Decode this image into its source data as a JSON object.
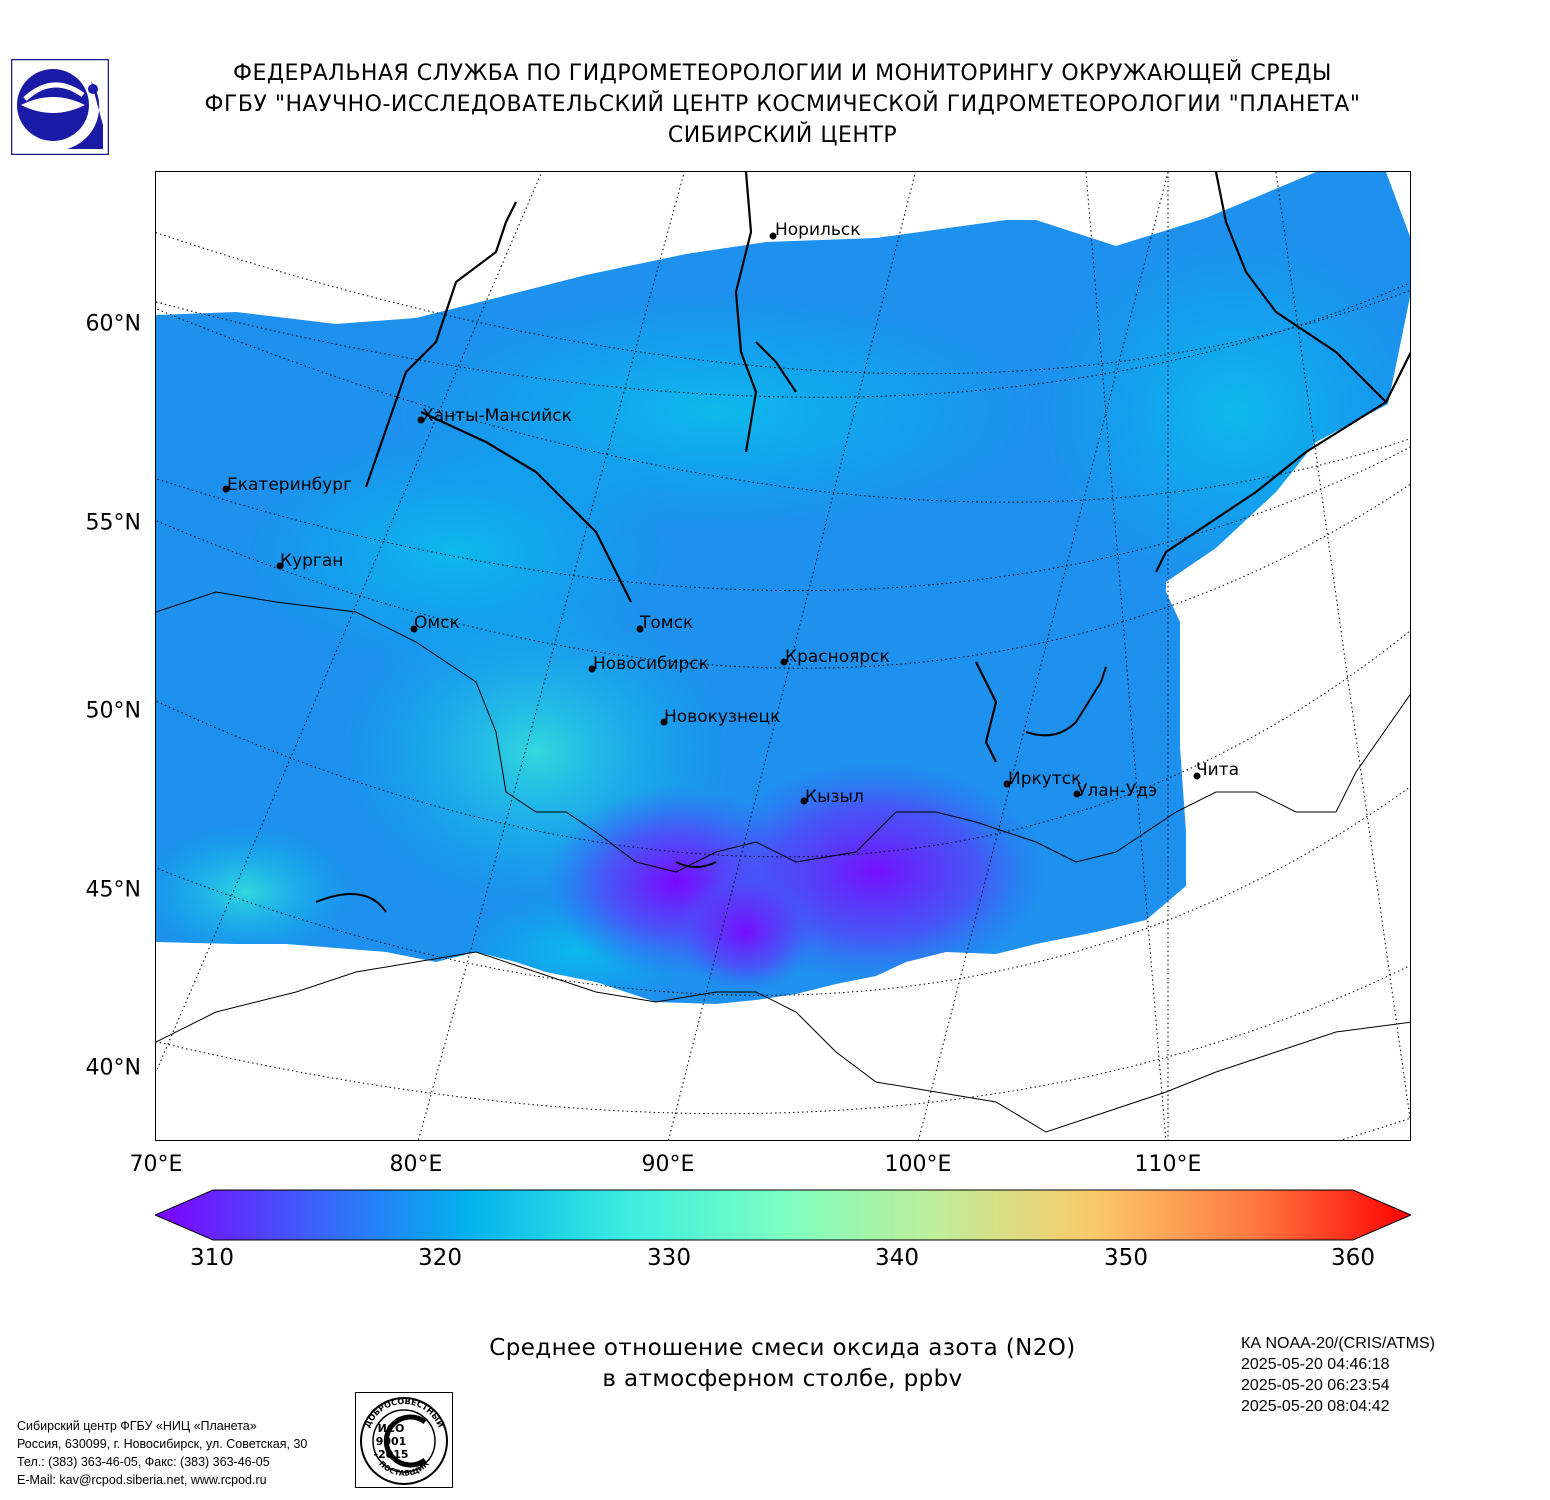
{
  "header": {
    "line1": "ФЕДЕРАЛЬНАЯ СЛУЖБА ПО ГИДРОМЕТЕОРОЛОГИИ И МОНИТОРИНГУ ОКРУЖАЮЩЕЙ СРЕДЫ",
    "line2": "ФГБУ \"НАУЧНО-ИССЛЕДОВАТЕЛЬСКИЙ ЦЕНТР КОСМИЧЕСКОЙ ГИДРОМЕТЕОРОЛОГИИ \"ПЛАНЕТА\"",
    "line3": "СИБИРСКИЙ ЦЕНТР"
  },
  "map": {
    "lat_labels": [
      "60°N",
      "55°N",
      "50°N",
      "45°N",
      "40°N"
    ],
    "lon_labels": [
      "70°E",
      "80°E",
      "90°E",
      "100°E",
      "110°E"
    ],
    "cities": [
      {
        "name": "Норильск",
        "lat": 69.3,
        "lon": 88.2
      },
      {
        "name": "Ханты-Мансийск",
        "lat": 61.0,
        "lon": 69.0
      },
      {
        "name": "Екатеринбург",
        "lat": 56.8,
        "lon": 60.6
      },
      {
        "name": "Курган",
        "lat": 55.4,
        "lon": 65.3
      },
      {
        "name": "Омск",
        "lat": 55.0,
        "lon": 73.4
      },
      {
        "name": "Томск",
        "lat": 56.5,
        "lon": 85.0
      },
      {
        "name": "Новосибирск",
        "lat": 55.0,
        "lon": 82.9
      },
      {
        "name": "Красноярск",
        "lat": 56.0,
        "lon": 92.9
      },
      {
        "name": "Новокузнецк",
        "lat": 53.8,
        "lon": 87.1
      },
      {
        "name": "Кызыл",
        "lat": 51.7,
        "lon": 94.5
      },
      {
        "name": "Иркутск",
        "lat": 52.3,
        "lon": 104.3
      },
      {
        "name": "Улан-Удэ",
        "lat": 51.8,
        "lon": 107.6
      },
      {
        "name": "Чита",
        "lat": 52.0,
        "lon": 113.5
      }
    ],
    "colors": {
      "coast": "#000000",
      "graticule": "#000000",
      "swath_base": "#1E90EE"
    }
  },
  "colorbar": {
    "ticks": [
      "310",
      "320",
      "330",
      "340",
      "350",
      "360"
    ],
    "tick_values": [
      310,
      320,
      330,
      340,
      350,
      360
    ],
    "min": 307.5,
    "max": 362.5,
    "colors": [
      "#7F00FF",
      "#3C60FB",
      "#02B2EE",
      "#3CEDE0",
      "#7DFFC2",
      "#C1ED98",
      "#FBC869",
      "#FF7843",
      "#FF0000"
    ]
  },
  "caption": {
    "line1": "Среднее отношение смеси оксида азота (N2O)",
    "line2": "в атмосферном столбе, ppbv"
  },
  "satellite": {
    "name": "КА NOAA-20/(CRIS/ATMS)",
    "times": [
      "2025-05-20 04:46:18",
      "2025-05-20 06:23:54",
      "2025-05-20 08:04:42"
    ]
  },
  "footer": {
    "line1": "Сибирский центр ФГБУ «НИЦ «Планета»",
    "line2": "Россия, 630099, г. Новосибирск, ул. Советская, 30",
    "line3": "Тел.: (383) 363-46-05, Факс: (383) 363-46-05",
    "line4": "E-Mail: kav@rcpod.siberia.net, www.rcpod.ru"
  },
  "iso_stamp": {
    "top_text": "ДОБРОСОВЕСТНЫЙ",
    "center_line1": "ИСО",
    "center_line2": "9001",
    "center_line3": "-2015",
    "bottom_text": "ПОСТАВЩИК"
  }
}
